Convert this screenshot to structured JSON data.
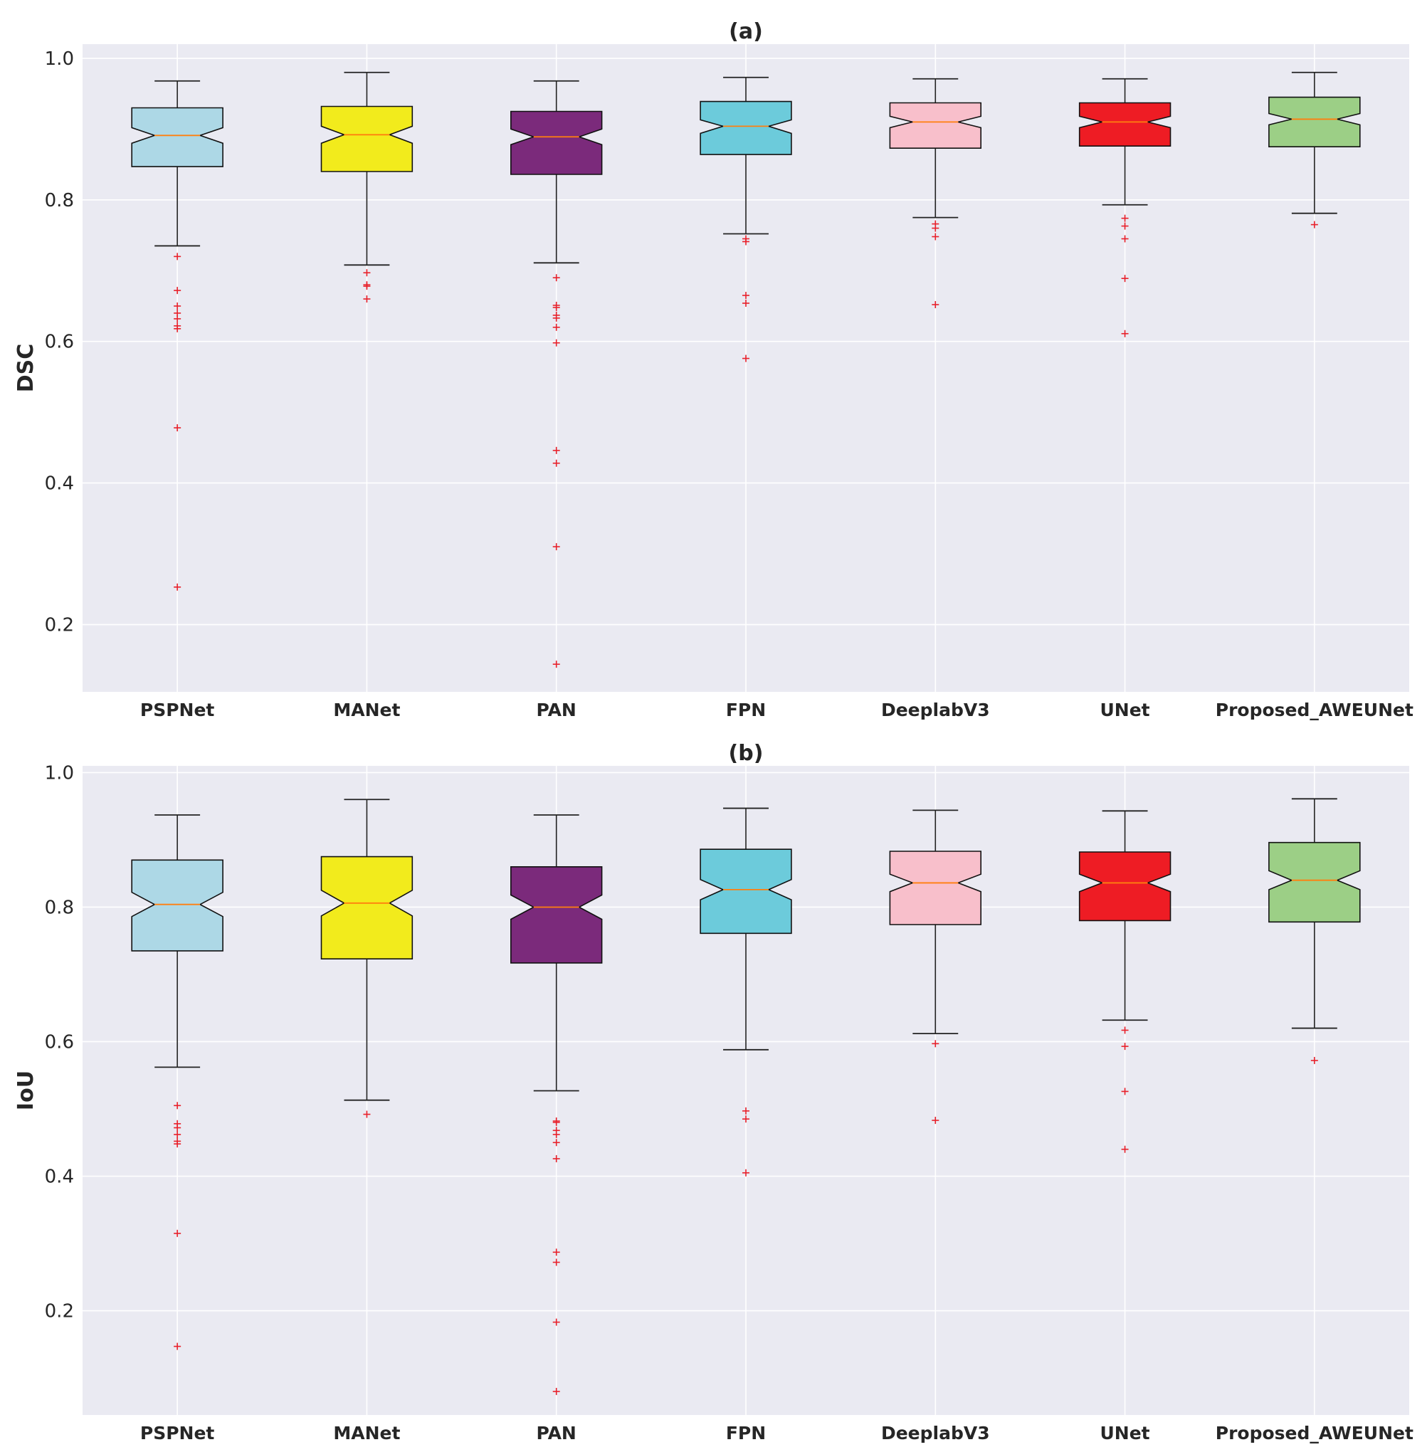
{
  "chart_data": [
    {
      "type": "box",
      "title": "(a)",
      "ylabel": "DSC",
      "xlabel": "",
      "ylim": [
        0.105,
        1.02
      ],
      "yticks": [
        0.2,
        0.4,
        0.6,
        0.8,
        1.0
      ],
      "ytick_labels": [
        "0.2",
        "0.4",
        "0.6",
        "0.8",
        "1.0"
      ],
      "grid": true,
      "notched": true,
      "categories": [
        "PSPNet",
        "MANet",
        "PAN",
        "FPN",
        "DeeplabV3",
        "UNet",
        "Proposed_AWEUNet"
      ],
      "boxes": [
        {
          "name": "PSPNet",
          "color": "#add8e6",
          "whisker_low": 0.735,
          "q1": 0.847,
          "median": 0.891,
          "q3": 0.93,
          "whisker_high": 0.968,
          "notch_low": 0.88,
          "notch_high": 0.902,
          "outliers": [
            0.72,
            0.672,
            0.65,
            0.64,
            0.632,
            0.622,
            0.618,
            0.478,
            0.253
          ]
        },
        {
          "name": "MANet",
          "color": "#f2eb1c",
          "whisker_low": 0.708,
          "q1": 0.84,
          "median": 0.892,
          "q3": 0.932,
          "whisker_high": 0.98,
          "notch_low": 0.88,
          "notch_high": 0.904,
          "outliers": [
            0.697,
            0.68,
            0.678,
            0.66
          ]
        },
        {
          "name": "PAN",
          "color": "#7b2a7b",
          "whisker_low": 0.711,
          "q1": 0.836,
          "median": 0.889,
          "q3": 0.925,
          "whisker_high": 0.968,
          "notch_low": 0.878,
          "notch_high": 0.9,
          "outliers": [
            0.69,
            0.651,
            0.648,
            0.637,
            0.633,
            0.62,
            0.598,
            0.446,
            0.428,
            0.31,
            0.144
          ]
        },
        {
          "name": "FPN",
          "color": "#6ccbdb",
          "whisker_low": 0.752,
          "q1": 0.864,
          "median": 0.904,
          "q3": 0.939,
          "whisker_high": 0.973,
          "notch_low": 0.894,
          "notch_high": 0.913,
          "outliers": [
            0.745,
            0.741,
            0.665,
            0.654,
            0.576
          ]
        },
        {
          "name": "DeeplabV3",
          "color": "#f8bfcb",
          "whisker_low": 0.775,
          "q1": 0.873,
          "median": 0.91,
          "q3": 0.937,
          "whisker_high": 0.971,
          "notch_low": 0.902,
          "notch_high": 0.918,
          "outliers": [
            0.766,
            0.76,
            0.748,
            0.652
          ]
        },
        {
          "name": "UNet",
          "color": "#ee1c24",
          "whisker_low": 0.793,
          "q1": 0.876,
          "median": 0.91,
          "q3": 0.937,
          "whisker_high": 0.971,
          "notch_low": 0.902,
          "notch_high": 0.918,
          "outliers": [
            0.774,
            0.763,
            0.745,
            0.689,
            0.611
          ]
        },
        {
          "name": "Proposed_AWEUNet",
          "color": "#9ccf86",
          "whisker_low": 0.781,
          "q1": 0.875,
          "median": 0.914,
          "q3": 0.945,
          "whisker_high": 0.98,
          "notch_low": 0.906,
          "notch_high": 0.922,
          "outliers": [
            0.765
          ]
        }
      ]
    },
    {
      "type": "box",
      "title": "(b)",
      "ylabel": "IoU",
      "xlabel": "",
      "ylim": [
        0.045,
        1.01
      ],
      "yticks": [
        0.2,
        0.4,
        0.6,
        0.8,
        1.0
      ],
      "ytick_labels": [
        "0.2",
        "0.4",
        "0.6",
        "0.8",
        "1.0"
      ],
      "grid": true,
      "notched": true,
      "categories": [
        "PSPNet",
        "MANet",
        "PAN",
        "FPN",
        "DeeplabV3",
        "UNet",
        "Proposed_AWEUNet"
      ],
      "boxes": [
        {
          "name": "PSPNet",
          "color": "#add8e6",
          "whisker_low": 0.562,
          "q1": 0.735,
          "median": 0.804,
          "q3": 0.87,
          "whisker_high": 0.937,
          "notch_low": 0.786,
          "notch_high": 0.822,
          "outliers": [
            0.505,
            0.478,
            0.472,
            0.462,
            0.452,
            0.448,
            0.315,
            0.147
          ]
        },
        {
          "name": "MANet",
          "color": "#f2eb1c",
          "whisker_low": 0.513,
          "q1": 0.723,
          "median": 0.806,
          "q3": 0.875,
          "whisker_high": 0.96,
          "notch_low": 0.787,
          "notch_high": 0.825,
          "outliers": [
            0.492
          ]
        },
        {
          "name": "PAN",
          "color": "#7b2a7b",
          "whisker_low": 0.527,
          "q1": 0.717,
          "median": 0.8,
          "q3": 0.86,
          "whisker_high": 0.937,
          "notch_low": 0.782,
          "notch_high": 0.818,
          "outliers": [
            0.482,
            0.48,
            0.468,
            0.462,
            0.45,
            0.426,
            0.287,
            0.272,
            0.183,
            0.08
          ]
        },
        {
          "name": "FPN",
          "color": "#6ccbdb",
          "whisker_low": 0.588,
          "q1": 0.761,
          "median": 0.826,
          "q3": 0.886,
          "whisker_high": 0.947,
          "notch_low": 0.811,
          "notch_high": 0.841,
          "outliers": [
            0.497,
            0.485,
            0.405
          ]
        },
        {
          "name": "DeeplabV3",
          "color": "#f8bfcb",
          "whisker_low": 0.612,
          "q1": 0.774,
          "median": 0.836,
          "q3": 0.883,
          "whisker_high": 0.944,
          "notch_low": 0.823,
          "notch_high": 0.849,
          "outliers": [
            0.597,
            0.483
          ]
        },
        {
          "name": "UNet",
          "color": "#ee1c24",
          "whisker_low": 0.632,
          "q1": 0.78,
          "median": 0.836,
          "q3": 0.882,
          "whisker_high": 0.943,
          "notch_low": 0.823,
          "notch_high": 0.849,
          "outliers": [
            0.617,
            0.593,
            0.526,
            0.44
          ]
        },
        {
          "name": "Proposed_AWEUNet",
          "color": "#9ccf86",
          "whisker_low": 0.62,
          "q1": 0.778,
          "median": 0.84,
          "q3": 0.896,
          "whisker_high": 0.961,
          "notch_low": 0.826,
          "notch_high": 0.854,
          "outliers": [
            0.572
          ]
        }
      ]
    }
  ],
  "colors": {
    "plot_background": "#eaeaf2",
    "grid": "#ffffff",
    "median_line": "#ff7f0e",
    "outlier_marker": "#e8202a",
    "whisker": "#222222",
    "text": "#262626"
  }
}
